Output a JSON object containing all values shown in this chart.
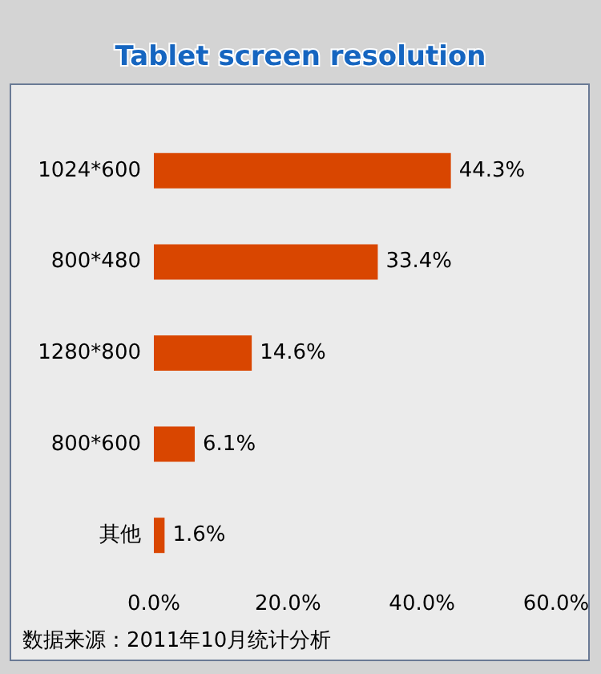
{
  "chart_data": {
    "type": "bar",
    "orientation": "horizontal",
    "title": "Tablet screen resolution",
    "categories": [
      "1024*600",
      "800*480",
      "1280*800",
      "800*600",
      "其他"
    ],
    "values": [
      44.3,
      33.4,
      14.6,
      6.1,
      1.6
    ],
    "value_labels": [
      "44.3%",
      "33.4%",
      "14.6%",
      "6.1%",
      "1.6%"
    ],
    "color": "#d94600",
    "xlim": [
      0,
      60
    ],
    "xticks": [
      {
        "value": 0,
        "label": "0.0%"
      },
      {
        "value": 20,
        "label": "20.0%"
      },
      {
        "value": 40,
        "label": "40.0%"
      },
      {
        "value": 60,
        "label": "60.0%"
      }
    ],
    "grid": false,
    "annotations": [
      "数据来源：2011年10月统计分析"
    ]
  }
}
